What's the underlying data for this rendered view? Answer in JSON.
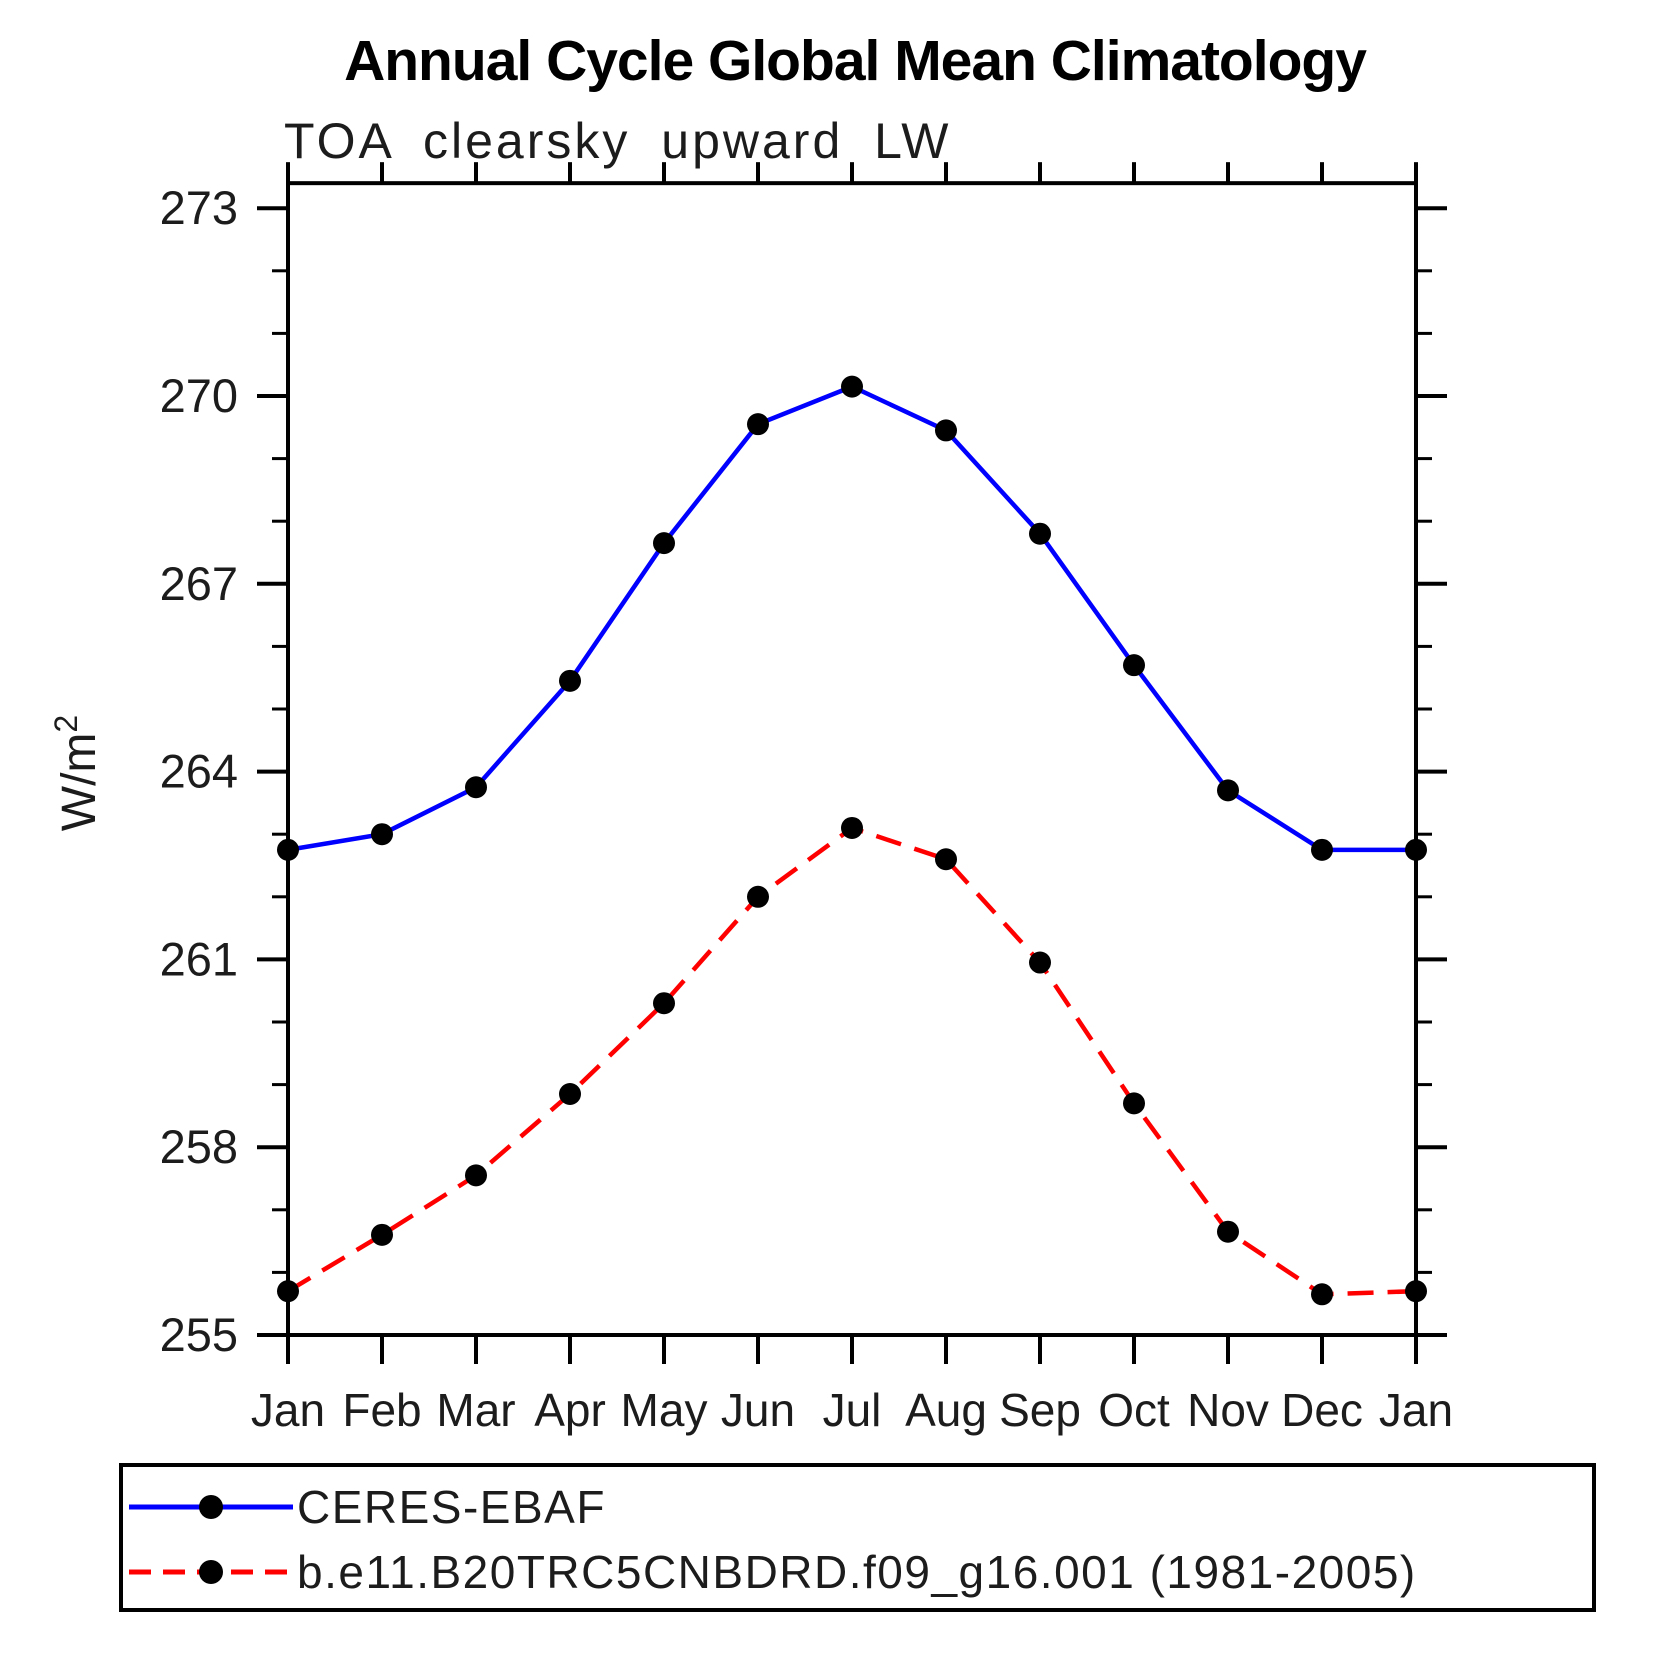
{
  "chart_data": {
    "type": "line",
    "title": "Annual Cycle Global Mean Climatology",
    "subtitle": "TOA clearsky upward LW",
    "ylabel": "W/m",
    "ylabel_superscript": "2",
    "x_categories": [
      "Jan",
      "Feb",
      "Mar",
      "Apr",
      "May",
      "Jun",
      "Jul",
      "Aug",
      "Sep",
      "Oct",
      "Nov",
      "Dec",
      "Jan"
    ],
    "y_major_ticks": [
      255,
      258,
      261,
      264,
      267,
      270,
      273
    ],
    "y_minor_step": 1,
    "ylim": [
      255,
      273.4
    ],
    "grid": false,
    "legend_position": "bottom",
    "axis_color": "#000000",
    "marker_color": "#000000",
    "series": [
      {
        "name": "CERES-EBAF",
        "color": "#0000ff",
        "line_style": "solid",
        "marker": "circle",
        "values": [
          262.75,
          263.0,
          263.75,
          265.45,
          267.65,
          269.55,
          270.15,
          269.45,
          267.8,
          265.7,
          263.7,
          262.75,
          262.75
        ]
      },
      {
        "name": "b.e11.B20TRC5CNBDRD.f09_g16.001 (1981-2005)",
        "color": "#ff0000",
        "line_style": "dashed",
        "marker": "circle",
        "values": [
          255.7,
          256.6,
          257.55,
          258.85,
          260.3,
          262.0,
          263.1,
          262.6,
          260.95,
          258.7,
          256.65,
          255.65,
          255.7
        ]
      }
    ]
  }
}
